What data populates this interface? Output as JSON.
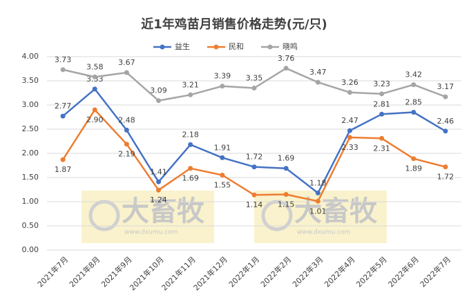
{
  "chart_data": {
    "type": "line",
    "title": "近1年鸡苗月销售价格走势(元/只)",
    "categories": [
      "2021年7月",
      "2021年8月",
      "2021年9月",
      "2021年10月",
      "2021年11月",
      "2021年12月",
      "2022年1月",
      "2022年2月",
      "2022年3月",
      "2022年4月",
      "2022年5月",
      "2022年6月",
      "2022年7月"
    ],
    "series": [
      {
        "name": "益生",
        "color": "#4472c4",
        "values": [
          2.77,
          3.33,
          2.48,
          1.41,
          2.18,
          1.91,
          1.72,
          1.69,
          1.18,
          2.47,
          2.81,
          2.85,
          2.46
        ],
        "value_labels": [
          "2.77",
          "3.33",
          "2.48",
          "1.41",
          "2.18",
          "1.91",
          "1.72",
          "1.69",
          "1.18",
          "2.47",
          "2.81",
          "2.85",
          "2.46"
        ]
      },
      {
        "name": "民和",
        "color": "#ed7d31",
        "values": [
          1.87,
          2.9,
          2.19,
          1.24,
          1.69,
          1.55,
          1.14,
          1.15,
          1.01,
          2.33,
          2.31,
          1.89,
          1.72
        ],
        "value_labels": [
          "1.87",
          "2.90",
          "2.19",
          "1.24",
          "1.69",
          "1.55",
          "1.14",
          "1.15",
          "1.01",
          "2.33",
          "2.31",
          "1.89",
          "1.72"
        ]
      },
      {
        "name": "晓鸣",
        "color": "#a5a5a5",
        "values": [
          3.73,
          3.58,
          3.67,
          3.09,
          3.21,
          3.39,
          3.35,
          3.76,
          3.47,
          3.26,
          3.23,
          3.42,
          3.17
        ],
        "value_labels": [
          "3.73",
          "3.58",
          "3.67",
          "3.09",
          "3.21",
          "3.39",
          "3.35",
          "3.76",
          "3.47",
          "3.26",
          "3.23",
          "3.42",
          "3.17"
        ]
      }
    ],
    "ylim": [
      0,
      4
    ],
    "yticks": [
      {
        "value": 0,
        "label": "0.00"
      },
      {
        "value": 0.5,
        "label": "0.50"
      },
      {
        "value": 1,
        "label": "1.00"
      },
      {
        "value": 1.5,
        "label": "1.50"
      },
      {
        "value": 2,
        "label": "2.00"
      },
      {
        "value": 2.5,
        "label": "2.50"
      },
      {
        "value": 3,
        "label": "3.00"
      },
      {
        "value": 3.5,
        "label": "3.50"
      },
      {
        "value": 4,
        "label": "4.00"
      }
    ],
    "grid": true,
    "legend": "top",
    "watermark": {
      "text": "大畜牧",
      "url": "www.dxumu.com"
    }
  }
}
